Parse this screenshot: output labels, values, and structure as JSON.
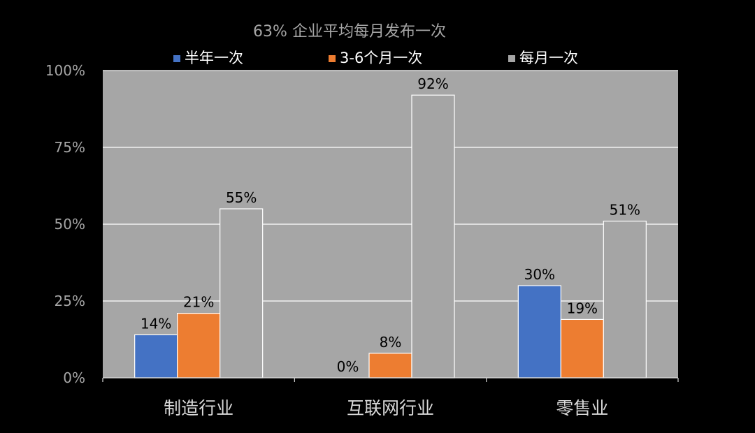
{
  "chart_data": {
    "type": "bar",
    "title": "63% 企业平均每月发布一次",
    "categories": [
      "制造行业",
      "互联网行业",
      "零售业"
    ],
    "series": [
      {
        "name": "半年一次",
        "values": [
          14,
          0,
          30
        ],
        "labels": [
          "14%",
          "0%",
          "30%"
        ],
        "color": "#4472c4"
      },
      {
        "name": "3-6个月一次",
        "values": [
          21,
          8,
          19
        ],
        "labels": [
          "21%",
          "8%",
          "19%"
        ],
        "color": "#ed7d31"
      },
      {
        "name": "每月一次",
        "values": [
          55,
          92,
          51
        ],
        "labels": [
          "55%",
          "92%",
          "51%"
        ],
        "color": "#a5a5a5"
      }
    ],
    "ylim": [
      0,
      100
    ],
    "yticks": [
      0,
      25,
      50,
      75,
      100
    ],
    "ytick_labels": [
      "0%",
      "25%",
      "50%",
      "75%",
      "100%"
    ],
    "grid": true,
    "legend_position": "top",
    "colors": {
      "page_background": "#000000",
      "plot_background": "#a6a6a6",
      "gridline": "#ffffff",
      "bar_border": "#ffffff"
    }
  }
}
